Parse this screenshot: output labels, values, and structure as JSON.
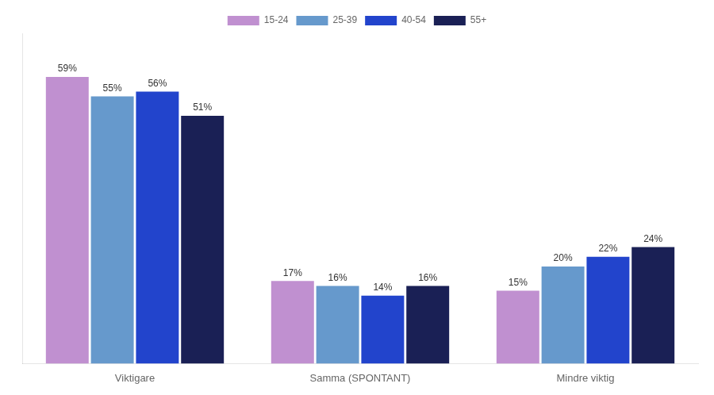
{
  "chart_data": {
    "type": "bar",
    "categories": [
      "Viktigare",
      "Samma (SPONTANT)",
      "Mindre viktig"
    ],
    "series": [
      {
        "name": "15-24",
        "color": "#c090d0",
        "values": [
          59,
          17,
          15
        ],
        "value_labels": [
          "59%",
          "17%",
          "15%"
        ]
      },
      {
        "name": "25-39",
        "color": "#6699cc",
        "values": [
          55,
          16,
          20
        ],
        "value_labels": [
          "55%",
          "16%",
          "20%"
        ]
      },
      {
        "name": "40-54",
        "color": "#2244cc",
        "values": [
          56,
          14,
          22
        ],
        "value_labels": [
          "56%",
          "14%",
          "22%"
        ]
      },
      {
        "name": "55+",
        "color": "#1a2055",
        "values": [
          51,
          16,
          24
        ],
        "value_labels": [
          "51%",
          "16%",
          "24%"
        ]
      }
    ],
    "ylim": [
      0,
      68
    ],
    "data_labels": true,
    "tick_labels": "x",
    "grid": false,
    "legend": "top"
  }
}
